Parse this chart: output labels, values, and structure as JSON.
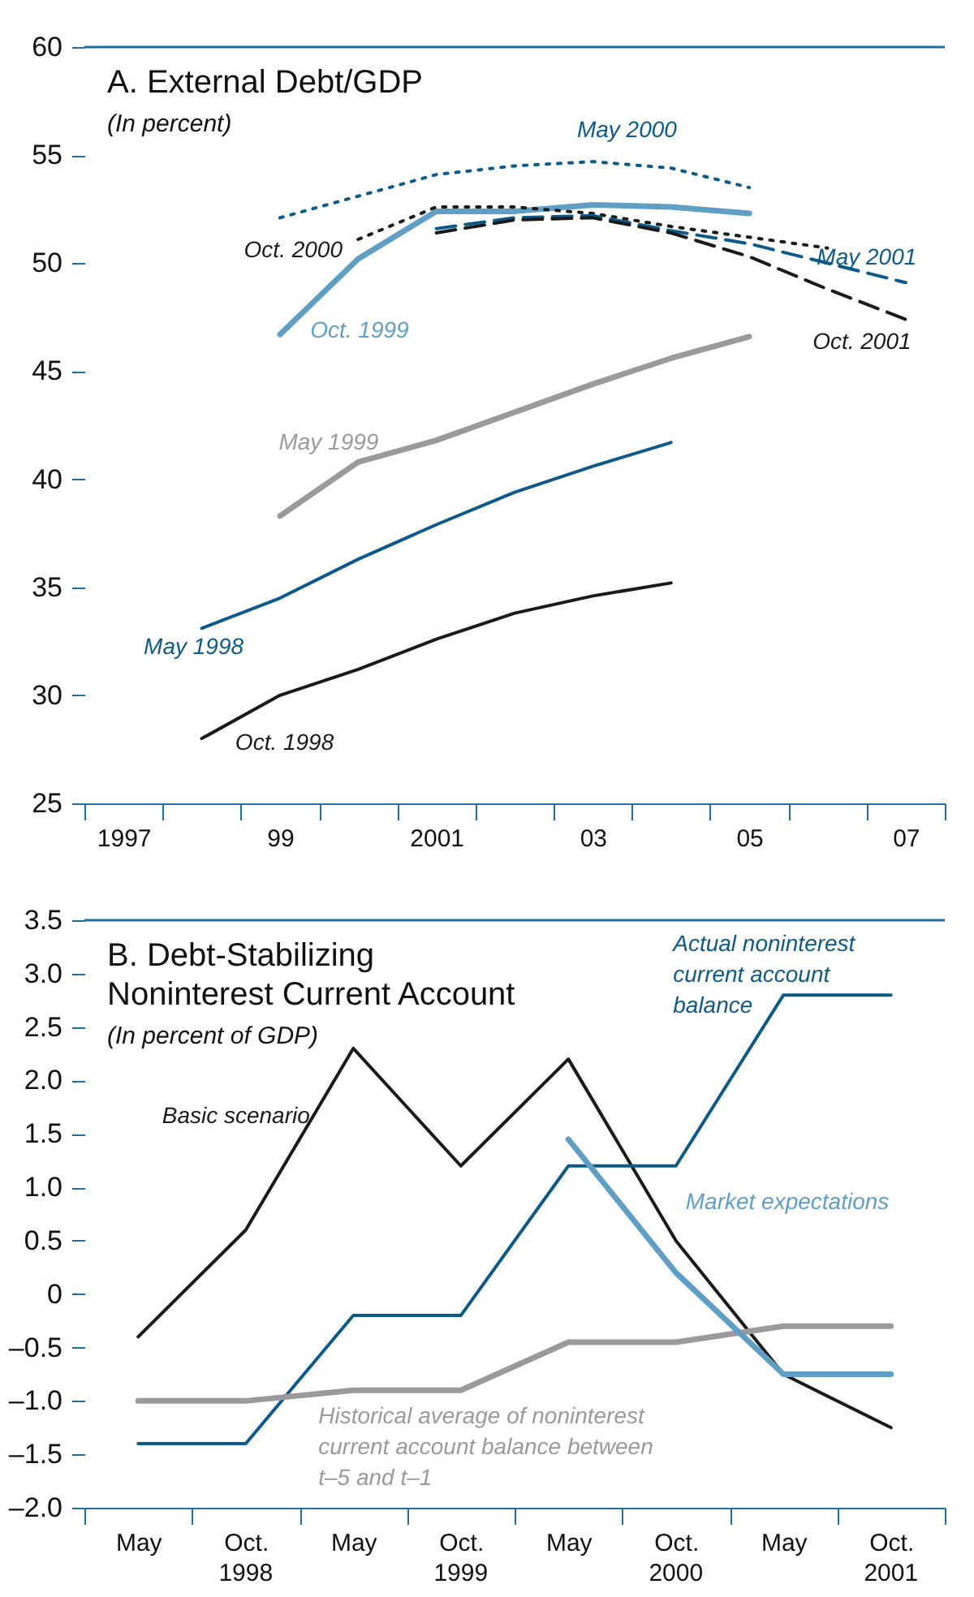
{
  "chart_data": [
    {
      "type": "line",
      "title": "A. External Debt/GDP",
      "subtitle": "(In percent)",
      "categories": [
        "1997",
        null,
        "99",
        null,
        "2001",
        null,
        "03",
        null,
        "05",
        null,
        "07"
      ],
      "ylim": [
        25,
        60
      ],
      "yticks": [
        25,
        30,
        35,
        40,
        45,
        50,
        55,
        60
      ],
      "series": [
        {
          "name": "May 1998",
          "color": "#0d5a8a",
          "line_style": "solid",
          "values": [
            null,
            33.1,
            34.5,
            36.3,
            37.9,
            39.4,
            40.6,
            41.7,
            null,
            null,
            null
          ]
        },
        {
          "name": "Oct. 1998",
          "color": "#1a1a1a",
          "line_style": "solid",
          "values": [
            null,
            28.0,
            30.0,
            31.2,
            32.6,
            33.8,
            34.6,
            35.2,
            null,
            null,
            null
          ]
        },
        {
          "name": "May 1999",
          "color": "#9a9a9c",
          "line_style": "solid",
          "values": [
            null,
            null,
            38.3,
            40.8,
            41.8,
            43.1,
            44.4,
            45.6,
            46.6,
            null,
            null
          ]
        },
        {
          "name": "Oct. 1999",
          "color": "#5f9fc6",
          "line_style": "solid",
          "values": [
            null,
            null,
            46.7,
            50.2,
            52.4,
            52.4,
            52.7,
            52.6,
            52.3,
            null,
            null
          ]
        },
        {
          "name": "May 2000",
          "color": "#0d5a8a",
          "line_style": "dotted",
          "values": [
            null,
            null,
            52.1,
            53.1,
            54.1,
            54.5,
            54.7,
            54.4,
            53.5,
            null,
            null
          ]
        },
        {
          "name": "Oct. 2000",
          "color": "#1a1a1a",
          "line_style": "dotted",
          "values": [
            null,
            null,
            null,
            51.1,
            52.6,
            52.6,
            52.3,
            51.7,
            51.2,
            50.7,
            null
          ]
        },
        {
          "name": "May 2001",
          "color": "#0d5a8a",
          "line_style": "dashed",
          "values": [
            null,
            null,
            null,
            null,
            51.6,
            52.1,
            52.2,
            51.5,
            50.9,
            50.0,
            49.1
          ]
        },
        {
          "name": "Oct. 2001",
          "color": "#1a1a1a",
          "line_style": "dashed",
          "values": [
            null,
            null,
            null,
            null,
            51.4,
            52.0,
            52.1,
            51.4,
            50.3,
            48.8,
            47.4
          ]
        }
      ]
    },
    {
      "type": "line",
      "title": "B. Debt-Stabilizing Noninterest Current Account",
      "subtitle": "(In percent of GDP)",
      "categories": [
        "May",
        "Oct.",
        "May",
        "Oct.",
        "May",
        "Oct.",
        "May",
        "Oct."
      ],
      "annotations": [
        "1998",
        "1999",
        "2000",
        "2001"
      ],
      "ylim": [
        -2,
        3.5
      ],
      "yticks": [
        {
          "value": -2,
          "label": "–2.0"
        },
        {
          "value": -1.5,
          "label": "–1.5"
        },
        {
          "value": -1,
          "label": "–1.0"
        },
        {
          "value": -0.5,
          "label": "–0.5"
        },
        0,
        0.5,
        {
          "value": 1,
          "label": "1.0"
        },
        1.5,
        {
          "value": 2,
          "label": "2.0"
        },
        2.5,
        {
          "value": 3,
          "label": "3.0"
        },
        3.5
      ],
      "series": [
        {
          "name": "Basic scenario",
          "color": "#1a1a1a",
          "line_style": "solid",
          "values": [
            -0.4,
            0.6,
            2.3,
            1.2,
            2.2,
            0.5,
            -0.75,
            -1.25
          ]
        },
        {
          "name": "Actual noninterest current account balance",
          "color": "#0d5a8a",
          "line_style": "solid",
          "values": [
            -1.4,
            -1.4,
            -0.2,
            -0.2,
            1.2,
            1.2,
            2.8,
            2.8
          ]
        },
        {
          "name": "Historical average of noninterest current account balance between t–5 and t–1",
          "color": "#9a9a9c",
          "line_style": "solid",
          "values": [
            -1.0,
            -1.0,
            -0.9,
            -0.9,
            -0.45,
            -0.45,
            -0.3,
            -0.3
          ]
        },
        {
          "name": "Market expectations",
          "color": "#5f9fc6",
          "line_style": "solid",
          "values": [
            null,
            null,
            null,
            null,
            1.45,
            0.2,
            -0.75,
            -0.75
          ]
        }
      ]
    }
  ]
}
